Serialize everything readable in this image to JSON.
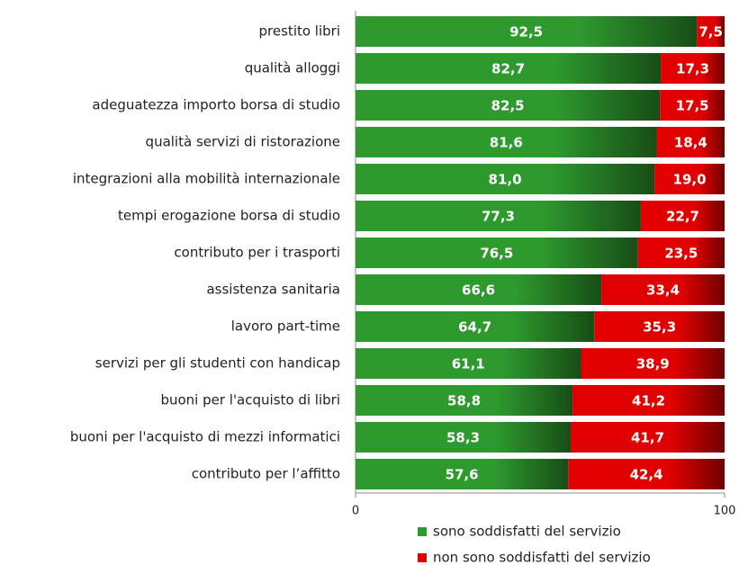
{
  "chart_data": {
    "type": "stacked-bar-horizontal",
    "categories": [
      "prestito libri",
      "qualità alloggi",
      "adeguatezza importo borsa di studio",
      "qualità servizi di ristorazione",
      "integrazioni alla mobilità internazionale",
      "tempi erogazione borsa di studio",
      "contributo per i trasporti",
      "assistenza sanitaria",
      "lavoro part-time",
      "servizi per gli studenti con handicap",
      "buoni per l'acquisto di libri",
      "buoni per l'acquisto di mezzi informatici",
      "contributo per l’affitto"
    ],
    "series": [
      {
        "name": "sono soddisfatti del servizio",
        "color": "#2e9a2e",
        "values": [
          92.5,
          82.7,
          82.5,
          81.6,
          81.0,
          77.3,
          76.5,
          66.6,
          64.7,
          61.1,
          58.8,
          58.3,
          57.6
        ],
        "value_labels": [
          "92,5",
          "82,7",
          "82,5",
          "81,6",
          "81,0",
          "77,3",
          "76,5",
          "66,6",
          "64,7",
          "61,1",
          "58,8",
          "58,3",
          "57,6"
        ]
      },
      {
        "name": "non sono soddisfatti del servizio",
        "color": "#e00000",
        "values": [
          7.5,
          17.3,
          17.5,
          18.4,
          19.0,
          22.7,
          23.5,
          33.4,
          35.3,
          38.9,
          41.2,
          41.7,
          42.4
        ],
        "value_labels": [
          "7,5",
          "17,3",
          "17,5",
          "18,4",
          "19,0",
          "22,7",
          "23,5",
          "33,4",
          "35,3",
          "38,9",
          "41,2",
          "41,7",
          "42,4"
        ]
      }
    ],
    "xlim": [
      0,
      100
    ],
    "xticks": [
      0,
      100
    ]
  }
}
